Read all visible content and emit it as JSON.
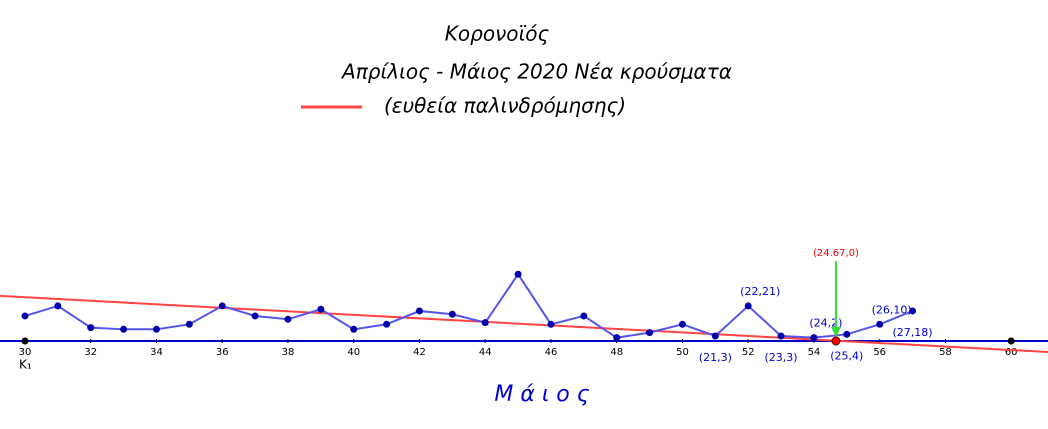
{
  "chart_data": {
    "type": "line",
    "title": "Κορονοϊός",
    "subtitle": "Απρίλιος - Μάιος 2020 Νέα κρούσματα",
    "x_label": "Μ ά ι ο ς",
    "xlim": [
      29.24,
      61.12
    ],
    "ylim": [
      -50.3,
      204.2
    ],
    "xticks": [
      30,
      32,
      34,
      36,
      38,
      40,
      42,
      44,
      46,
      48,
      50,
      52,
      54,
      56,
      58,
      60
    ],
    "series": [
      {
        "name": "Νέα κρούσματα",
        "color": "#5555ee",
        "x": [
          30,
          31,
          32,
          33,
          34,
          35,
          36,
          37,
          38,
          39,
          40,
          41,
          42,
          43,
          44,
          45,
          46,
          47,
          48,
          49,
          50,
          51,
          52,
          53,
          54,
          55,
          56,
          57
        ],
        "values": [
          15,
          21,
          8,
          7,
          7,
          10,
          21,
          15,
          13,
          19,
          7,
          10,
          18,
          16,
          11,
          40,
          10,
          15,
          2,
          5,
          10,
          3,
          21,
          3,
          2,
          4,
          10,
          18
        ],
        "value_labels": [
          null,
          null,
          null,
          null,
          null,
          null,
          null,
          null,
          null,
          null,
          null,
          null,
          null,
          null,
          null,
          null,
          null,
          null,
          null,
          null,
          null,
          "(21,3)",
          "(22,21)",
          "(23,3)",
          "(24,2)",
          "(25,4)",
          "(26,10)",
          "(27,18)"
        ]
      }
    ],
    "regression": {
      "name": "(ευθεία παλινδρόμησης)",
      "color": "#ff4444",
      "x": [
        29.24,
        61.12
      ],
      "values": [
        27,
        -6.6
      ]
    },
    "intercept_point": {
      "label": "(24.67,0)",
      "x": 54.67,
      "y": 0,
      "color": "#ff0000"
    },
    "axis_points": {
      "x": [
        30,
        60
      ],
      "labels": [
        "K₁",
        null
      ]
    }
  }
}
